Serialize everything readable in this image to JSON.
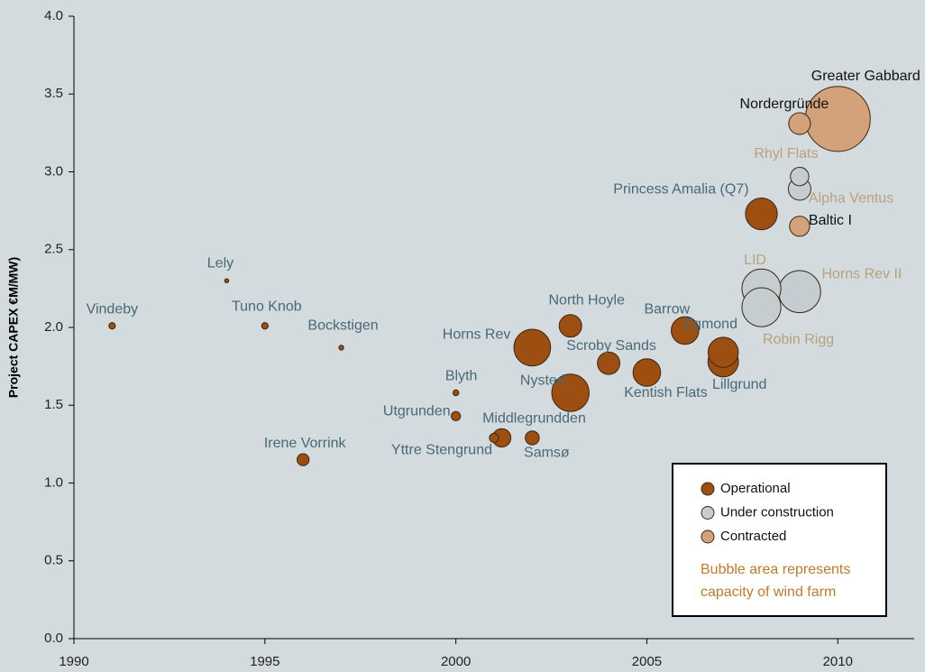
{
  "chart_data": {
    "type": "scatter",
    "y_label": "Project CAPEX €M/MW)",
    "xlim": [
      1990,
      2012
    ],
    "xticks": [
      1990,
      1995,
      2000,
      2005,
      2010
    ],
    "ylim": [
      0,
      4
    ],
    "yticks": [
      {
        "value": 0,
        "label": "0.0"
      },
      {
        "value": 0.5,
        "label": "0.5"
      },
      {
        "value": 1,
        "label": "1.0"
      },
      {
        "value": 1.5,
        "label": "1.5"
      },
      {
        "value": 2,
        "label": "2.0"
      },
      {
        "value": 2.5,
        "label": "2.5"
      },
      {
        "value": 3,
        "label": "3.0"
      },
      {
        "value": 3.5,
        "label": "3.5"
      },
      {
        "value": 4,
        "label": "4.0"
      }
    ],
    "legend_note": [
      "Bubble area represents",
      "capacity of wind farm"
    ],
    "series": [
      {
        "name": "Operational",
        "color": "#9c4f10",
        "label_color": "#4a6878",
        "labels": [
          "Vindeby",
          "Lely",
          "Tuno Knob",
          "Bockstigen",
          "Blyth",
          "Utgrunden",
          "Irene Vorrink",
          "Yttre Stengrund",
          "Middlegrundden",
          "Samsø",
          "Horns Rev",
          "Nysted",
          "North Hoyle",
          "Scroby Sands",
          "Kentish Flats",
          "Barrow",
          "Egmond",
          "Lillgrund",
          "Princess Amalia (Q7)"
        ],
        "x": [
          1991,
          1994,
          1995,
          1997,
          2000,
          2000,
          1996,
          2001,
          2001.2,
          2002,
          2002,
          2003,
          2003,
          2004,
          2005,
          2006,
          2007,
          2007,
          2008
        ],
        "values": [
          2.01,
          2.3,
          2.01,
          1.87,
          1.58,
          1.43,
          1.15,
          1.29,
          1.29,
          1.29,
          1.87,
          1.58,
          2.01,
          1.77,
          1.71,
          1.98,
          1.84,
          1.78,
          2.73
        ],
        "sizes": [
          5,
          2,
          5,
          2.75,
          4,
          10,
          17,
          10,
          40,
          23,
          160,
          166,
          60,
          60,
          90,
          90,
          108,
          110,
          120
        ]
      },
      {
        "name": "Under construction",
        "color": "#c5cdd0",
        "label_color": "#b8a27a",
        "labels": [
          "Rhyl Flats",
          "Alpha Ventus",
          "LID",
          "Robin Rigg",
          "Horns Rev II"
        ],
        "x": [
          2009,
          2009,
          2008,
          2008,
          2009
        ],
        "values": [
          2.97,
          2.89,
          2.25,
          2.13,
          2.23
        ],
        "sizes": [
          40,
          60,
          180,
          180,
          209
        ]
      },
      {
        "name": "Contracted",
        "color": "#d4a27a",
        "label_color": "#111111",
        "labels": [
          "Greater Gabbard",
          "Nordergründe",
          "Baltic I"
        ],
        "x": [
          2010,
          2009,
          2009
        ],
        "values": [
          3.34,
          3.31,
          2.65
        ],
        "sizes": [
          500,
          56,
          48
        ]
      }
    ]
  }
}
